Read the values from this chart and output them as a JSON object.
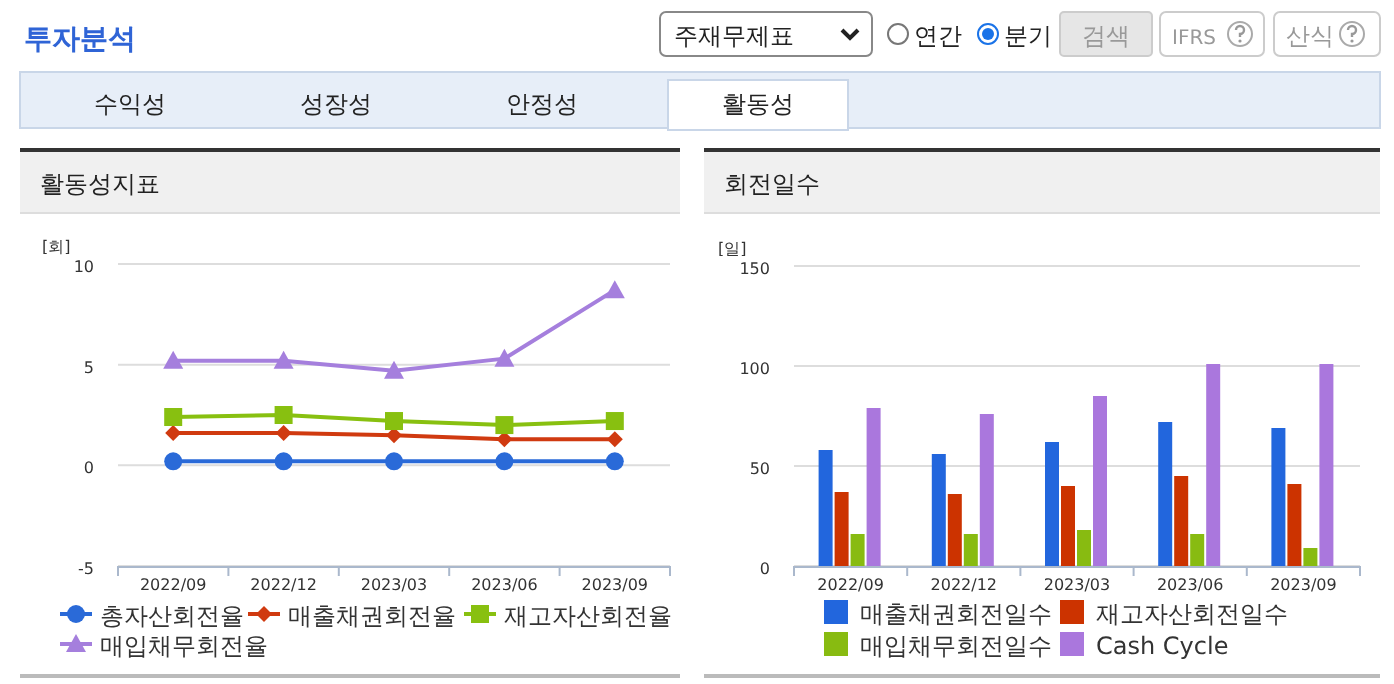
{
  "chart_data": [
    {
      "type": "other",
      "title": "투자분석",
      "annotations": [
        "주재무제표",
        "연간",
        "분기",
        "검색",
        "IFRS",
        "산식",
        "수익성",
        "성장성",
        "안정성",
        "활동성"
      ]
    },
    {
      "type": "line",
      "title": "활동성지표",
      "ylabel": "[회]",
      "categories": [
        "2022/09",
        "2022/12",
        "2023/03",
        "2023/06",
        "2023/09"
      ],
      "ylim": [
        -5,
        10
      ],
      "yticks": [
        -5,
        0,
        5,
        10
      ],
      "grid": "y",
      "legend": "bottom",
      "series": [
        {
          "name": "총자산회전율",
          "color": "#2a6ad8",
          "marker": "circle",
          "values": [
            0.2,
            0.2,
            0.2,
            0.2,
            0.2
          ]
        },
        {
          "name": "매출채권회전율",
          "color": "#d03a10",
          "marker": "diamond",
          "values": [
            1.6,
            1.6,
            1.5,
            1.3,
            1.3
          ]
        },
        {
          "name": "재고자산회전율",
          "color": "#88c010",
          "marker": "square",
          "values": [
            2.4,
            2.5,
            2.2,
            2.0,
            2.2
          ]
        },
        {
          "name": "매입채무회전율",
          "color": "#a57fdd",
          "marker": "triangle",
          "values": [
            5.2,
            5.2,
            4.7,
            5.3,
            8.7
          ]
        }
      ]
    },
    {
      "type": "bar",
      "title": "회전일수",
      "ylabel": "[일]",
      "categories": [
        "2022/09",
        "2022/12",
        "2023/03",
        "2023/06",
        "2023/09"
      ],
      "ylim": [
        0,
        150
      ],
      "yticks": [
        0,
        50,
        100,
        150
      ],
      "grid": "y",
      "legend": "bottom",
      "series": [
        {
          "name": "매출채권회전일수",
          "color": "#2266dd",
          "values": [
            58,
            56,
            62,
            72,
            69
          ]
        },
        {
          "name": "재고자산회전일수",
          "color": "#cc3300",
          "values": [
            37,
            36,
            40,
            45,
            41
          ]
        },
        {
          "name": "매입채무회전일수",
          "color": "#88bb11",
          "values": [
            16,
            16,
            18,
            16,
            9
          ]
        },
        {
          "name": "Cash Cycle",
          "color": "#aa77dd",
          "values": [
            79,
            76,
            85,
            101,
            101
          ]
        }
      ]
    }
  ]
}
